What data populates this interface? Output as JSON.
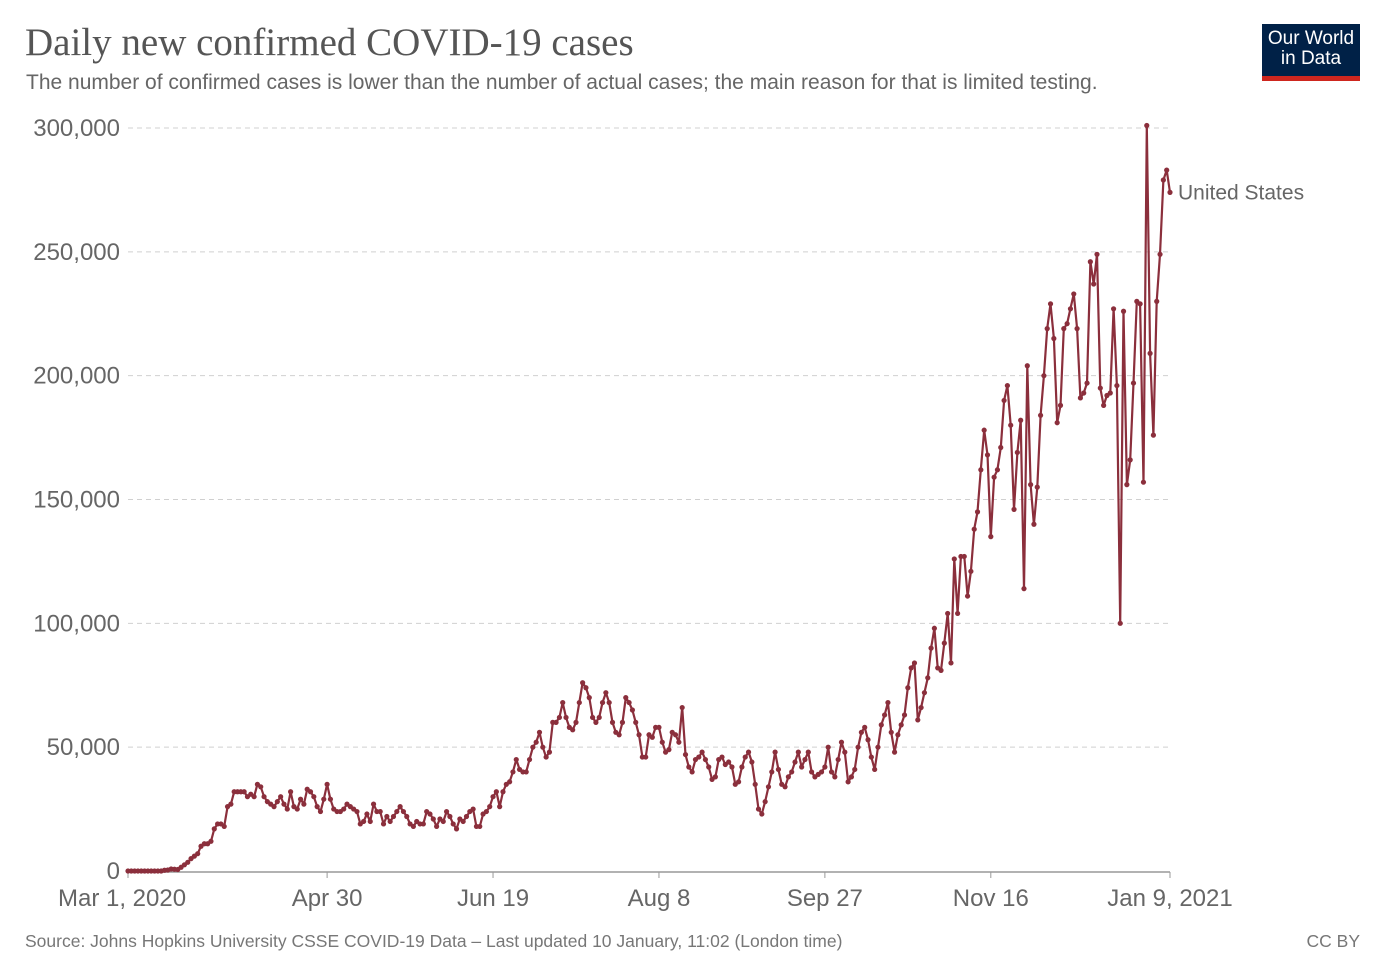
{
  "header": {
    "title": "Daily new confirmed COVID-19 cases",
    "subtitle": "The number of confirmed cases is lower than the number of actual cases; the main reason for that is limited testing."
  },
  "logo": {
    "line1": "Our World",
    "line2": "in Data"
  },
  "footer": {
    "source": "Source: Johns Hopkins University CSSE COVID-19 Data – Last updated 10 January, 11:02 (London time)",
    "license": "CC BY"
  },
  "colors": {
    "series": "#8b2f3c",
    "grid": "#d0d0d0",
    "axis": "#999999"
  },
  "chart_data": {
    "type": "line",
    "title": "Daily new confirmed COVID-19 cases",
    "xlabel": "",
    "ylabel": "",
    "start_date": "2020-03-01",
    "end_date": "2021-01-09",
    "x_unit": "days since Mar 1, 2020",
    "ylim": [
      0,
      300000
    ],
    "grid": true,
    "y_ticks": [
      {
        "value": 0,
        "label": "0"
      },
      {
        "value": 50000,
        "label": "50,000"
      },
      {
        "value": 100000,
        "label": "100,000"
      },
      {
        "value": 150000,
        "label": "150,000"
      },
      {
        "value": 200000,
        "label": "200,000"
      },
      {
        "value": 250000,
        "label": "250,000"
      },
      {
        "value": 300000,
        "label": "300,000"
      }
    ],
    "x_ticks": [
      {
        "day": 0,
        "label": "Mar 1, 2020"
      },
      {
        "day": 60,
        "label": "Apr 30"
      },
      {
        "day": 110,
        "label": "Jun 19"
      },
      {
        "day": 160,
        "label": "Aug 8"
      },
      {
        "day": 210,
        "label": "Sep 27"
      },
      {
        "day": 260,
        "label": "Nov 16"
      },
      {
        "day": 314,
        "label": "Jan 9, 2021"
      }
    ],
    "series": [
      {
        "name": "United States",
        "values_scale": 1000,
        "values": [
          0,
          0,
          0,
          0,
          0,
          0,
          0,
          0,
          0,
          0,
          0,
          0.3,
          0.4,
          0.8,
          0.7,
          0.6,
          1.5,
          2.5,
          3.5,
          5,
          6,
          7,
          10,
          11,
          11,
          12,
          17,
          19,
          19,
          18,
          26,
          27,
          32,
          32,
          32,
          32,
          30,
          31,
          30,
          35,
          34,
          30,
          28,
          27,
          26,
          28,
          30,
          27,
          25,
          32,
          26,
          25,
          29,
          27,
          33,
          32,
          30,
          26,
          24,
          29,
          35,
          29,
          25,
          24,
          24,
          25,
          27,
          26,
          25,
          24,
          19,
          20,
          23,
          20,
          27,
          24,
          24,
          19,
          22,
          20,
          22,
          24,
          26,
          24,
          22,
          19,
          18,
          20,
          19,
          19,
          24,
          23,
          21,
          18,
          21,
          20,
          24,
          22,
          19,
          17,
          21,
          20,
          22,
          24,
          25,
          18,
          18,
          23,
          24,
          26,
          30,
          32,
          26,
          32,
          35,
          36,
          40,
          45,
          41,
          40,
          40,
          45,
          50,
          52,
          56,
          50,
          46,
          48,
          60,
          60,
          62,
          68,
          62,
          58,
          57,
          60,
          68,
          76,
          74,
          70,
          62,
          60,
          62,
          68,
          72,
          68,
          60,
          56,
          55,
          60,
          70,
          68,
          65,
          60,
          55,
          46,
          46,
          55,
          54,
          58,
          58,
          52,
          48,
          49,
          56,
          55,
          52,
          66,
          47,
          42,
          40,
          45,
          46,
          48,
          45,
          42,
          37,
          38,
          45,
          46,
          43,
          44,
          42,
          35,
          36,
          42,
          46,
          48,
          44,
          35,
          25,
          23,
          28,
          34,
          40,
          48,
          41,
          35,
          34,
          38,
          40,
          44,
          48,
          42,
          45,
          48,
          40,
          38,
          39,
          40,
          42,
          50,
          40,
          38,
          45,
          52,
          48,
          36,
          38,
          41,
          50,
          56,
          58,
          53,
          46,
          41,
          50,
          59,
          63,
          68,
          56,
          48,
          55,
          59,
          63,
          74,
          82,
          84,
          61,
          66,
          72,
          78,
          90,
          98,
          82,
          81,
          92,
          104,
          84,
          126,
          104,
          127,
          127,
          111,
          121,
          138,
          145,
          162,
          178,
          168,
          135,
          159,
          162,
          171,
          190,
          196,
          180,
          146,
          169,
          182,
          114,
          204,
          156,
          140,
          155,
          184,
          200,
          219,
          229,
          215,
          181,
          188,
          219,
          221,
          227,
          233,
          219,
          191,
          193,
          197,
          246,
          237,
          249,
          195,
          188,
          192,
          193,
          227,
          196,
          100,
          226,
          156,
          166,
          197,
          230,
          229,
          157,
          301,
          209,
          176,
          230,
          249,
          279,
          283,
          274
        ]
      }
    ]
  }
}
